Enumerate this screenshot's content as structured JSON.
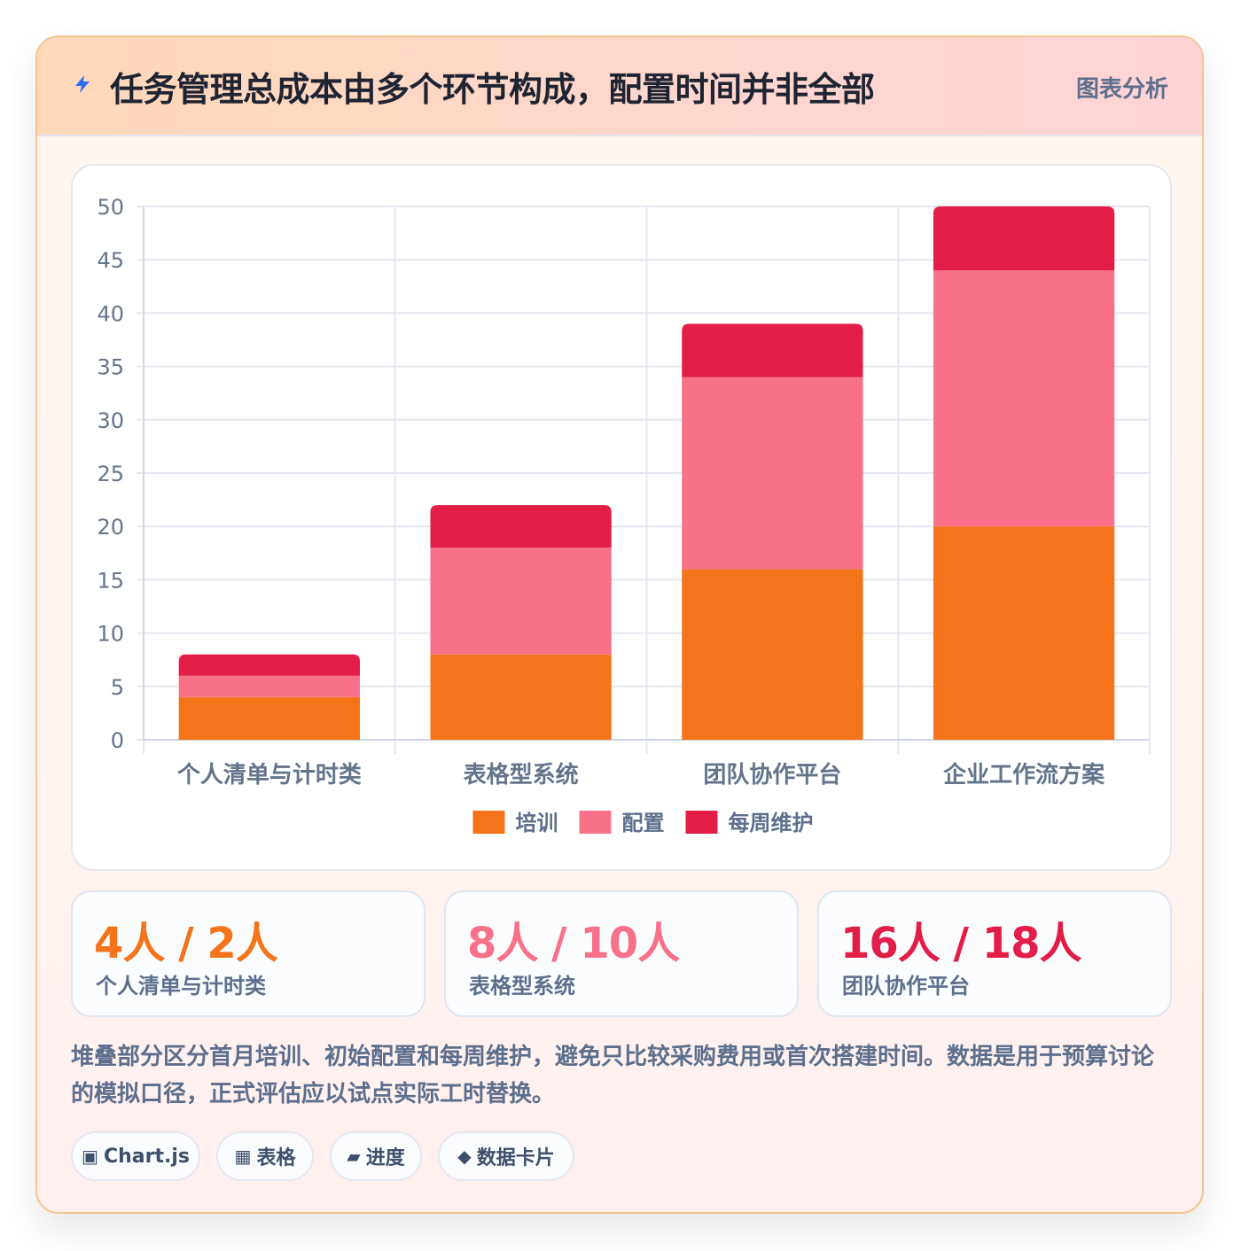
{
  "header": {
    "title": "任务管理总成本由多个环节构成，配置时间并非全部",
    "tag": "图表分析",
    "icon": "lightning-icon"
  },
  "chart_data": {
    "type": "bar",
    "stacked": true,
    "categories": [
      "个人清单与计时类",
      "表格型系统",
      "团队协作平台",
      "企业工作流方案"
    ],
    "series": [
      {
        "name": "培训",
        "color": "#f5731a",
        "values": [
          4,
          8,
          16,
          20
        ]
      },
      {
        "name": "配置",
        "color": "#f87189",
        "values": [
          2,
          10,
          18,
          24
        ]
      },
      {
        "name": "每周维护",
        "color": "#e11d48",
        "values": [
          2,
          4,
          5,
          6
        ]
      }
    ],
    "ylim": [
      0,
      50
    ],
    "yticks": [
      0,
      5,
      10,
      15,
      20,
      25,
      30,
      35,
      40,
      45,
      50
    ],
    "grid": true,
    "legend_position": "bottom"
  },
  "stats": [
    {
      "value": "4人 / 2人",
      "label": "个人清单与计时类",
      "color": "#f5731a"
    },
    {
      "value": "8人 / 10人",
      "label": "表格型系统",
      "color": "#f87189"
    },
    {
      "value": "16人 / 18人",
      "label": "团队协作平台",
      "color": "#e11d48"
    }
  ],
  "note": "堆叠部分区分首月培训、初始配置和每周维护，避免只比较采购费用或首次搭建时间。数据是用于预算讨论的模拟口径，正式评估应以试点实际工时替换。",
  "chips": [
    {
      "icon": "▣",
      "label": "Chart.js"
    },
    {
      "icon": "▦",
      "label": "表格"
    },
    {
      "icon": "▰",
      "label": "进度"
    },
    {
      "icon": "◆",
      "label": "数据卡片"
    }
  ]
}
